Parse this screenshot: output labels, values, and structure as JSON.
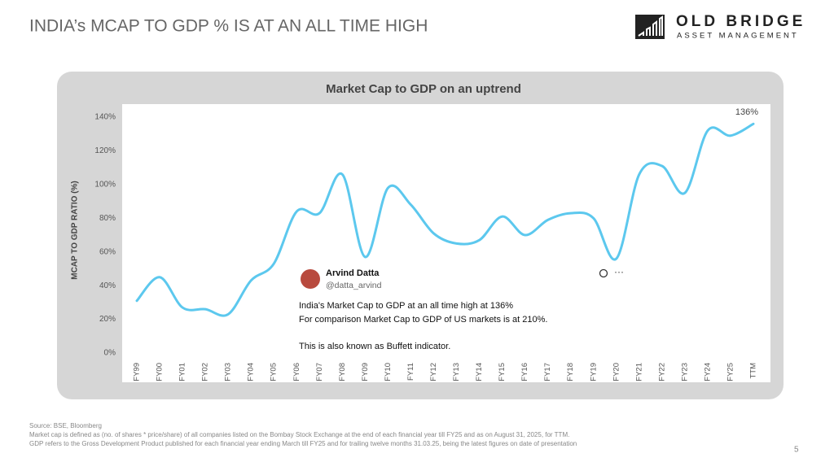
{
  "slide": {
    "title": "INDIA’s MCAP TO GDP % IS AT AN ALL TIME HIGH",
    "logo_line1": "OLD BRIDGE",
    "logo_line2": "ASSET MANAGEMENT",
    "page_number": "5"
  },
  "chart_data": {
    "type": "line",
    "title": "Market Cap to GDP on an uptrend",
    "y_label": "MCAP TO GDP RATIO (%)",
    "categories": [
      "FY99",
      "FY00",
      "FY01",
      "FY02",
      "FY03",
      "FY04",
      "FY05",
      "FY06",
      "FY07",
      "FY08",
      "FY09",
      "FY10",
      "FY11",
      "FY12",
      "FY13",
      "FY14",
      "FY15",
      "FY16",
      "FY17",
      "FY18",
      "FY19",
      "FY20",
      "FY21",
      "FY22",
      "FY23",
      "FY24",
      "FY25",
      "TTM"
    ],
    "series": [
      {
        "name": "MCAP to GDP",
        "color": "#5cc8ee",
        "values": [
          31,
          45,
          27,
          26,
          23,
          43,
          53,
          84,
          83,
          106,
          57,
          98,
          88,
          71,
          65,
          67,
          81,
          70,
          79,
          83,
          80,
          56,
          106,
          111,
          95,
          132,
          129,
          136
        ],
        "value_labels": [
          null,
          null,
          null,
          null,
          null,
          null,
          null,
          null,
          null,
          null,
          null,
          null,
          null,
          null,
          null,
          null,
          null,
          null,
          null,
          null,
          null,
          null,
          null,
          null,
          null,
          null,
          null,
          "136%"
        ]
      }
    ],
    "ylim": [
      0,
      140
    ],
    "yticks": [
      {
        "value": 0,
        "label": "0%"
      },
      {
        "value": 20,
        "label": "20%"
      },
      {
        "value": 40,
        "label": "40%"
      },
      {
        "value": 60,
        "label": "60%"
      },
      {
        "value": 80,
        "label": "80%"
      },
      {
        "value": 100,
        "label": "100%"
      },
      {
        "value": 120,
        "label": "120%"
      },
      {
        "value": 140,
        "label": "140%"
      }
    ],
    "grid": false
  },
  "tweet": {
    "name": "Arvind Datta",
    "handle": "@datta_arvind",
    "lines": [
      "India's Market Cap to GDP at an all time high at 136%",
      "For comparison Market Cap to GDP of US markets is at 210%.",
      "This is also known as Buffett indicator."
    ]
  },
  "footer": {
    "lines": [
      "Source: BSE, Bloomberg",
      "Market cap is defined as (no. of shares * price/share)  of all companies listed on the Bombay Stock Exchange at the end of each financial year till FY25 and as on August 31, 2025, for TTM.",
      "GDP refers to the Gross Development Product published for each financial year ending March till FY25 and for trailing twelve months 31.03.25, being the latest figures on date of presentation"
    ]
  }
}
